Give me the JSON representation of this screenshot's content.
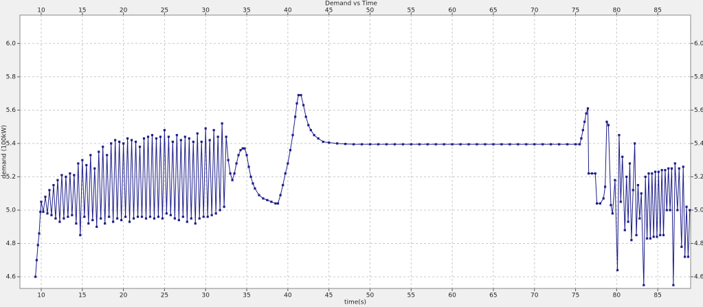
{
  "chart_data": {
    "type": "line",
    "title": "Demand vs Time",
    "x_label": "time(s)",
    "y_label": "demand (100kW)",
    "color": "#1c1c8a",
    "grid": true,
    "xlim": [
      7.41,
      89.0
    ],
    "ylim": [
      4.53,
      6.17
    ],
    "xticks": [
      10,
      15,
      20,
      25,
      30,
      35,
      40,
      45,
      50,
      55,
      60,
      65,
      70,
      75,
      80,
      85
    ],
    "yticks": [
      {
        "value": 4.6,
        "label": "4.6"
      },
      {
        "value": 4.8,
        "label": "4.8"
      },
      {
        "value": 5.0,
        "label": "5.0"
      },
      {
        "value": 5.2,
        "label": "5.2"
      },
      {
        "value": 5.4,
        "label": "5.4"
      },
      {
        "value": 5.6,
        "label": "5.6"
      },
      {
        "value": 5.8,
        "label": "5.8"
      },
      {
        "value": 6.0,
        "label": "6.0"
      }
    ],
    "x": [
      9.3,
      9.45,
      9.6,
      9.75,
      9.9,
      10,
      10.25,
      10.5,
      10.75,
      11,
      11.25,
      11.5,
      11.75,
      12,
      12.25,
      12.5,
      12.75,
      13,
      13.25,
      13.5,
      13.75,
      14,
      14.25,
      14.5,
      14.75,
      15,
      15.25,
      15.5,
      15.75,
      16,
      16.25,
      16.5,
      16.75,
      17,
      17.25,
      17.5,
      17.75,
      18,
      18.25,
      18.5,
      18.75,
      19,
      19.25,
      19.5,
      19.75,
      20,
      20.25,
      20.5,
      20.75,
      21,
      21.25,
      21.5,
      21.75,
      22,
      22.25,
      22.5,
      22.75,
      23,
      23.25,
      23.5,
      23.75,
      24,
      24.25,
      24.5,
      24.75,
      25,
      25.25,
      25.5,
      25.75,
      26,
      26.25,
      26.5,
      26.75,
      27,
      27.25,
      27.5,
      27.75,
      28,
      28.25,
      28.5,
      28.75,
      29,
      29.25,
      29.5,
      29.75,
      30,
      30.25,
      30.5,
      30.75,
      31,
      31.25,
      31.5,
      31.75,
      32,
      32.25,
      32.5,
      32.75,
      33,
      33.25,
      33.5,
      33.75,
      34,
      34.25,
      34.5,
      34.75,
      35,
      35.25,
      35.5,
      35.75,
      36,
      36.5,
      37,
      37.5,
      38,
      38.5,
      38.8,
      39.1,
      39.4,
      39.7,
      40,
      40.3,
      40.6,
      40.9,
      41.1,
      41.3,
      41.6,
      41.9,
      42.2,
      42.5,
      42.8,
      43.2,
      43.7,
      44.3,
      45,
      46,
      47,
      48,
      49,
      50,
      51,
      52,
      53,
      54,
      55,
      56,
      57,
      58,
      59,
      60,
      61,
      62,
      63,
      64,
      65,
      66,
      67,
      68,
      69,
      70,
      71,
      72,
      73,
      74,
      75,
      75.5,
      75.7,
      75.9,
      76.1,
      76.3,
      76.5,
      76.6,
      77,
      77.4,
      77.6,
      78,
      78.4,
      78.6,
      78.8,
      79,
      79.3,
      79.5,
      79.8,
      80.1,
      80.3,
      80.5,
      80.7,
      81,
      81.2,
      81.4,
      81.6,
      81.8,
      82,
      82.2,
      82.4,
      82.6,
      82.8,
      83,
      83.3,
      83.5,
      83.7,
      83.9,
      84.1,
      84.3,
      84.5,
      84.7,
      84.9,
      85.1,
      85.3,
      85.5,
      85.7,
      85.9,
      86.1,
      86.3,
      86.5,
      86.7,
      86.9,
      87.1,
      87.4,
      87.6,
      87.9,
      88.1,
      88.3,
      88.5,
      88.7,
      88.9
    ],
    "values": [
      4.6,
      4.7,
      4.79,
      4.86,
      4.99,
      5.05,
      4.99,
      5.08,
      4.98,
      5.12,
      4.97,
      5.15,
      4.95,
      5.18,
      4.93,
      5.21,
      4.95,
      5.2,
      4.96,
      5.22,
      4.97,
      5.21,
      4.92,
      5.28,
      4.85,
      5.3,
      4.96,
      5.27,
      4.92,
      5.33,
      4.94,
      5.25,
      4.9,
      5.35,
      4.95,
      5.38,
      4.92,
      5.33,
      4.96,
      5.4,
      4.93,
      5.42,
      4.95,
      5.41,
      4.94,
      5.4,
      4.96,
      5.43,
      4.93,
      5.42,
      4.95,
      5.41,
      4.96,
      5.38,
      4.96,
      5.43,
      4.95,
      5.44,
      4.96,
      5.45,
      4.95,
      5.43,
      4.96,
      5.44,
      4.95,
      5.48,
      4.98,
      5.44,
      4.97,
      5.41,
      4.95,
      5.45,
      4.94,
      5.42,
      4.96,
      5.44,
      4.93,
      5.43,
      4.95,
      5.41,
      4.92,
      5.46,
      4.95,
      5.41,
      4.96,
      5.49,
      4.96,
      5.42,
      4.97,
      5.48,
      4.98,
      5.44,
      5.0,
      5.52,
      5.02,
      5.44,
      5.3,
      5.22,
      5.18,
      5.22,
      5.28,
      5.33,
      5.36,
      5.37,
      5.37,
      5.33,
      5.26,
      5.2,
      5.16,
      5.13,
      5.09,
      5.07,
      5.06,
      5.05,
      5.04,
      5.04,
      5.09,
      5.15,
      5.22,
      5.28,
      5.36,
      5.45,
      5.56,
      5.64,
      5.69,
      5.69,
      5.63,
      5.56,
      5.51,
      5.48,
      5.45,
      5.43,
      5.41,
      5.405,
      5.4,
      5.397,
      5.395,
      5.395,
      5.395,
      5.395,
      5.395,
      5.395,
      5.395,
      5.395,
      5.395,
      5.395,
      5.395,
      5.395,
      5.395,
      5.395,
      5.395,
      5.395,
      5.395,
      5.395,
      5.395,
      5.395,
      5.395,
      5.395,
      5.395,
      5.395,
      5.395,
      5.395,
      5.395,
      5.395,
      5.395,
      5.43,
      5.48,
      5.53,
      5.58,
      5.61,
      5.22,
      5.22,
      5.22,
      5.04,
      5.04,
      5.07,
      5.14,
      5.53,
      5.51,
      5.03,
      4.98,
      5.18,
      4.64,
      5.45,
      5.05,
      5.32,
      4.88,
      5.2,
      4.93,
      5.28,
      4.82,
      5.12,
      5.4,
      4.85,
      5.15,
      4.95,
      5.1,
      4.55,
      5.2,
      4.83,
      5.22,
      4.83,
      5.22,
      4.84,
      5.23,
      4.84,
      5.23,
      4.85,
      5.24,
      4.85,
      5.24,
      5.0,
      5.25,
      5.0,
      5.25,
      4.55,
      5.28,
      5.0,
      5.25,
      4.78,
      5.26,
      4.72,
      5.02,
      4.72,
      5.0
    ]
  }
}
